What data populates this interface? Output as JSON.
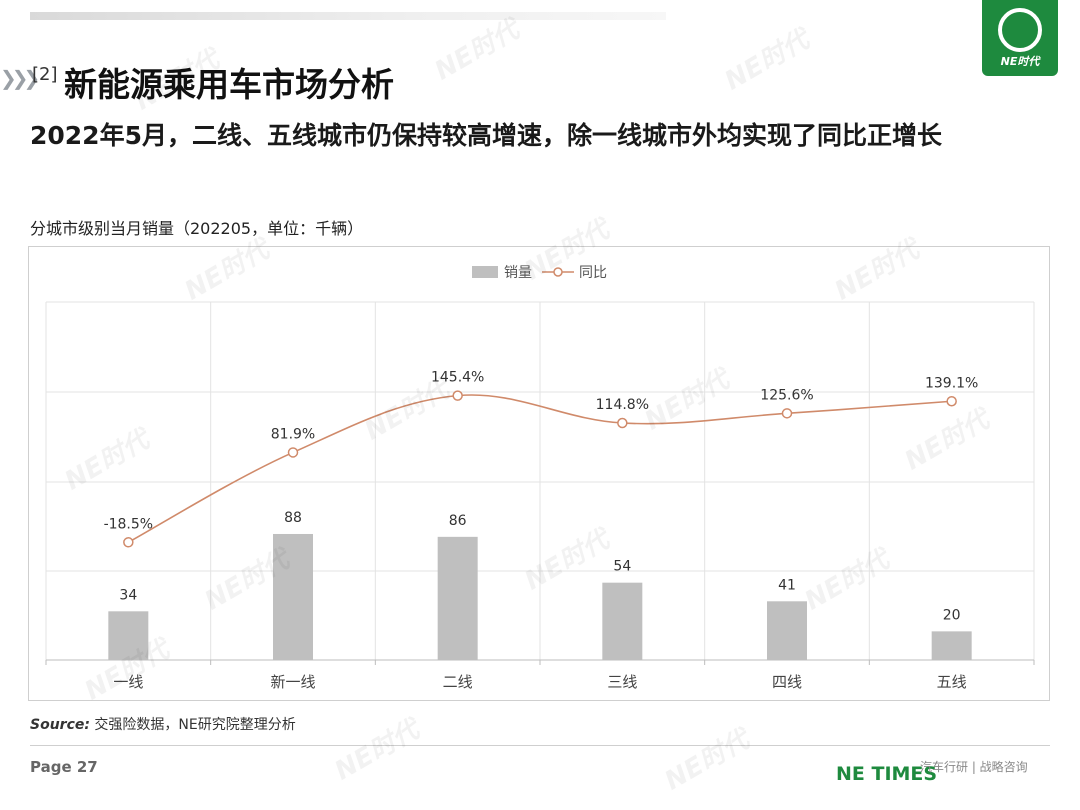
{
  "header": {
    "logo_text": "NE时代",
    "section_number": "[2]",
    "section_title": "新能源乘用车市场分析",
    "subtitle": "2022年5月，二线、五线城市仍保持较高增速，除一线城市外均实现了同比正增长"
  },
  "chart_caption": "分城市级别当月销量（202205，单位：千辆）",
  "chart_data": {
    "type": "bar",
    "categories": [
      "一线",
      "新一线",
      "二线",
      "三线",
      "四线",
      "五线"
    ],
    "series": [
      {
        "name": "销量",
        "type": "bar",
        "values": [
          34,
          88,
          86,
          54,
          41,
          20
        ],
        "color": "#bfbfbf"
      },
      {
        "name": "同比",
        "type": "line",
        "values": [
          -18.5,
          81.9,
          145.4,
          114.8,
          125.6,
          139.1
        ],
        "value_labels": [
          "-18.5%",
          "81.9%",
          "145.4%",
          "114.8%",
          "125.6%",
          "139.1%"
        ],
        "color": "#d08a6a"
      }
    ],
    "legend": {
      "position": "top-center",
      "items": [
        "销量",
        "同比"
      ]
    },
    "grid": true
  },
  "source": {
    "label": "Source:",
    "text": "交强险数据，NE研究院整理分析"
  },
  "footer": {
    "page": "Page 27",
    "brand": "NE TIMES",
    "tagline": "汽车行研 | 战略咨询"
  },
  "watermark_text": "NE时代",
  "colors": {
    "brand_green": "#1e8a3e",
    "bar": "#bfbfbf",
    "line": "#d08a6a"
  }
}
